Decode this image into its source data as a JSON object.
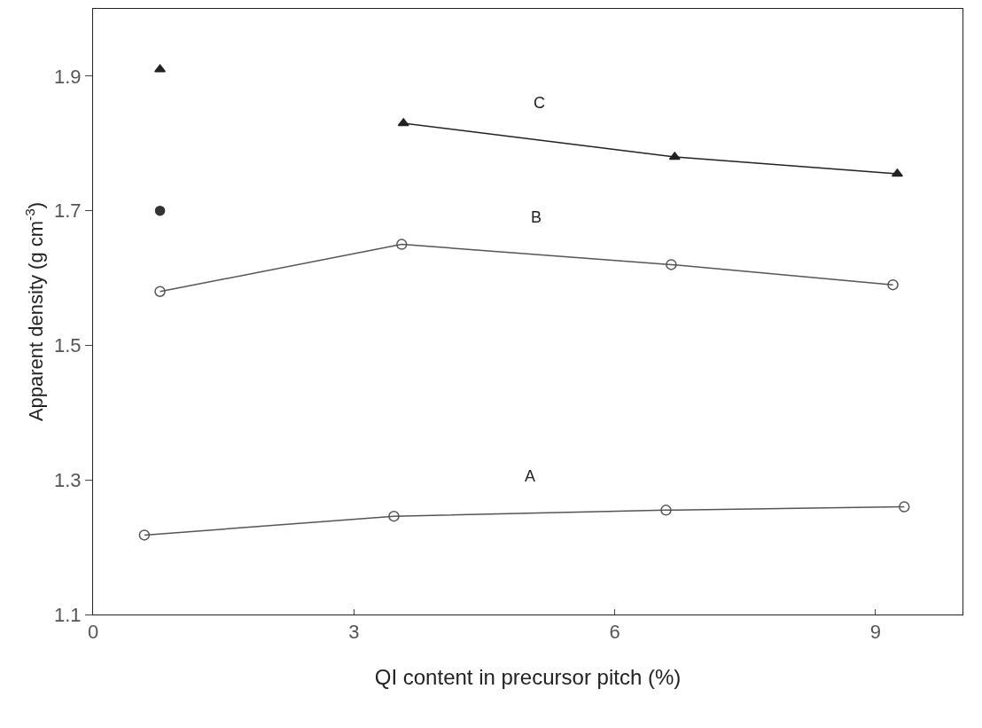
{
  "chart_data": {
    "type": "line",
    "xlabel": "QI content in precursor pitch (%)",
    "ylabel": "Apparent density (g cm$^{-3}$)",
    "xlim": [
      0,
      10
    ],
    "xticks": [
      0,
      3,
      6,
      9
    ],
    "ylim": [
      1.1,
      2.0
    ],
    "yticks": [
      1.1,
      1.3,
      1.5,
      1.7,
      1.9
    ],
    "grid": false,
    "series": [
      {
        "name": "C",
        "marker": "triangle",
        "color": "#222222",
        "x": [
          3.57,
          6.69,
          9.25
        ],
        "values": [
          1.83,
          1.78,
          1.755
        ]
      },
      {
        "type": "scatter",
        "marker": "triangle",
        "color": "#222222",
        "x": [
          0.77
        ],
        "values": [
          1.91
        ]
      },
      {
        "type": "scatter",
        "marker": "circle",
        "color": "#333333",
        "x": [
          0.77
        ],
        "values": [
          1.7
        ]
      },
      {
        "name": "B",
        "marker": "circle",
        "color": "#555555",
        "x": [
          0.77,
          3.55,
          6.65,
          9.2
        ],
        "values": [
          1.58,
          1.65,
          1.62,
          1.59
        ]
      },
      {
        "name": "A",
        "marker": "circle",
        "color": "#555555",
        "x": [
          0.59,
          3.46,
          6.59,
          9.33
        ],
        "values": [
          1.218,
          1.246,
          1.255,
          1.26
        ]
      }
    ]
  }
}
